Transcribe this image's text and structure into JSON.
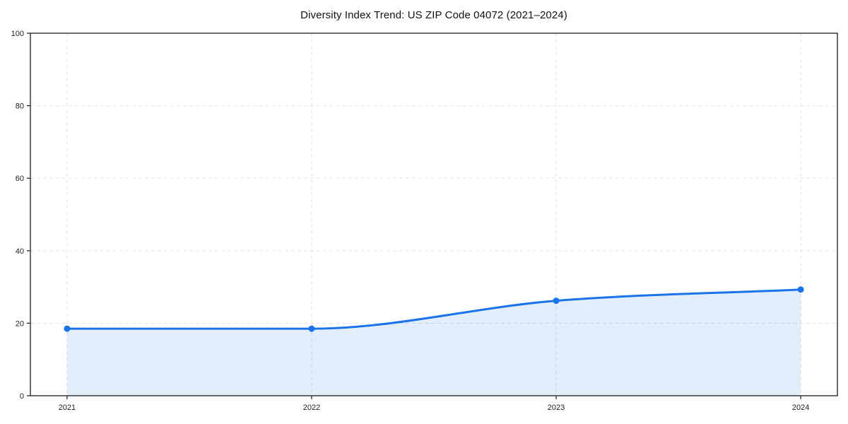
{
  "chart_data": {
    "type": "area",
    "title": "Diversity Index Trend: US ZIP Code 04072 (2021–2024)",
    "x": [
      2021,
      2022,
      2023,
      2024
    ],
    "series": [
      {
        "name": "Diversity Index",
        "values": [
          18.5,
          18.5,
          26.2,
          29.3
        ]
      }
    ],
    "xticklabels": [
      "2021",
      "2022",
      "2023",
      "2024"
    ],
    "yticks": [
      0,
      20,
      40,
      60,
      80,
      100
    ],
    "yticklabels": [
      "0",
      "20",
      "40",
      "60",
      "80",
      "100"
    ],
    "xlim": [
      2020.85,
      2024.15
    ],
    "ylim": [
      0,
      100
    ],
    "grid": true,
    "grid_style": "dashed",
    "legend_position": "none",
    "xlabel": "",
    "ylabel": "",
    "colors": {
      "line": "#1a73e8",
      "marker": "#1a73e8",
      "fill": "#1a73e8",
      "fill_opacity": 0.12,
      "grid": "#e2e2e2",
      "axis": "#1a1a1a",
      "tick_text": "#1f1f1f",
      "title_text": "#111111",
      "background": "#ffffff"
    }
  }
}
